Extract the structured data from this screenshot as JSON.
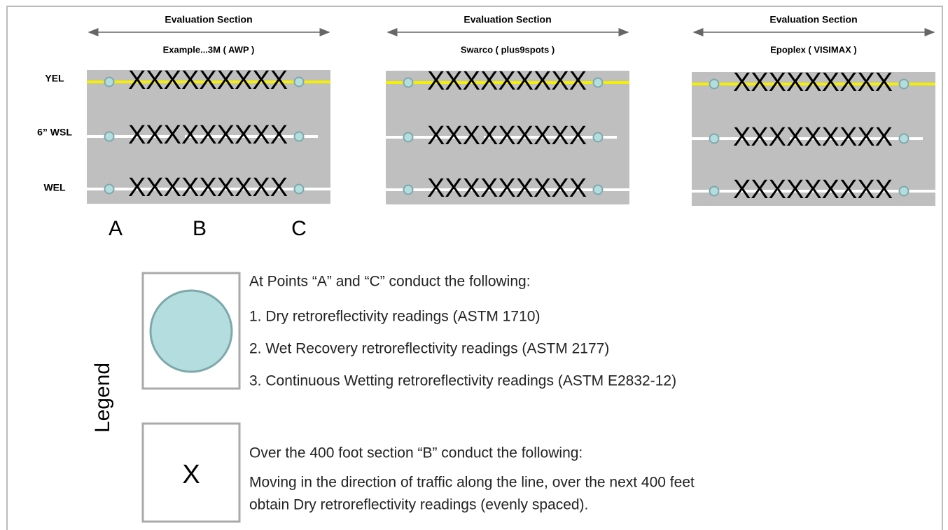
{
  "row_labels": [
    "YEL",
    "6” WSL",
    "WEL"
  ],
  "panels": [
    {
      "title": "Evaluation Section",
      "subtitle": "Example...3M ( AWP )",
      "marks": [
        "XXXXXXXXX",
        "XXXXXXXXX",
        "XXXXXXXXX"
      ]
    },
    {
      "title": "Evaluation Section",
      "subtitle": "Swarco ( plus9spots )",
      "marks": [
        "XXXXXXXXX",
        "XXXXXXXXX",
        "XXXXXXXXX"
      ]
    },
    {
      "title": "Evaluation Section",
      "subtitle": "Epoplex ( VISIMAX )",
      "marks": [
        "XXXXXXXXX",
        "XXXXXXXXX",
        "XXXXXXXXX"
      ]
    }
  ],
  "point_labels": [
    "A",
    "B",
    "C"
  ],
  "legend": {
    "title": "Legend",
    "circle": {
      "heading": "At Points “A” and “C” conduct the following:",
      "items": [
        "1. Dry retroreflectivity readings (ASTM 1710)",
        "2. Wet Recovery retroreflectivity readings (ASTM 2177)",
        "3. Continuous Wetting retroreflectivity readings (ASTM E2832-12)"
      ]
    },
    "cross": {
      "symbol": "X",
      "heading": "Over the 400 foot section “B” conduct the following:",
      "lines": [
        "Moving in the direction of traffic along the line, over the next 400 feet",
        "obtain Dry retroreflectivity readings (evenly spaced)."
      ]
    }
  }
}
